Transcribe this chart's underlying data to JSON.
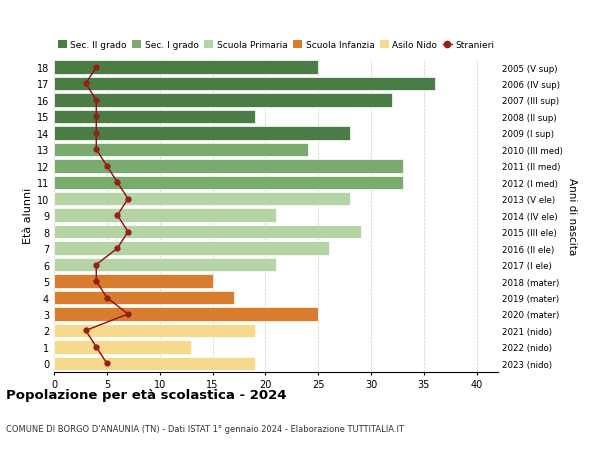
{
  "ages": [
    18,
    17,
    16,
    15,
    14,
    13,
    12,
    11,
    10,
    9,
    8,
    7,
    6,
    5,
    4,
    3,
    2,
    1,
    0
  ],
  "right_labels": [
    "2005 (V sup)",
    "2006 (IV sup)",
    "2007 (III sup)",
    "2008 (II sup)",
    "2009 (I sup)",
    "2010 (III med)",
    "2011 (II med)",
    "2012 (I med)",
    "2013 (V ele)",
    "2014 (IV ele)",
    "2015 (III ele)",
    "2016 (II ele)",
    "2017 (I ele)",
    "2018 (mater)",
    "2019 (mater)",
    "2020 (mater)",
    "2021 (nido)",
    "2022 (nido)",
    "2023 (nido)"
  ],
  "bar_values": [
    25,
    36,
    32,
    19,
    28,
    24,
    33,
    33,
    28,
    21,
    29,
    26,
    21,
    15,
    17,
    25,
    19,
    13,
    19
  ],
  "bar_colors": [
    "#4a7c45",
    "#4a7c45",
    "#4a7c45",
    "#4a7c45",
    "#4a7c45",
    "#7aaa6e",
    "#7aaa6e",
    "#7aaa6e",
    "#b5d4a5",
    "#b5d4a5",
    "#b5d4a5",
    "#b5d4a5",
    "#b5d4a5",
    "#d97c2e",
    "#d97c2e",
    "#d97c2e",
    "#f7d98b",
    "#f7d98b",
    "#f7d98b"
  ],
  "stranieri_values": [
    4,
    3,
    4,
    4,
    4,
    4,
    5,
    6,
    7,
    6,
    7,
    6,
    4,
    4,
    5,
    7,
    3,
    4,
    5
  ],
  "legend_labels": [
    "Sec. II grado",
    "Sec. I grado",
    "Scuola Primaria",
    "Scuola Infanzia",
    "Asilo Nido",
    "Stranieri"
  ],
  "legend_colors": [
    "#4a7c45",
    "#7aaa6e",
    "#b5d4a5",
    "#d97c2e",
    "#f7d98b",
    "#9b1c1c"
  ],
  "title": "Popolazione per età scolastica - 2024",
  "subtitle": "COMUNE DI BORGO D'ANAUNIA (TN) - Dati ISTAT 1° gennaio 2024 - Elaborazione TUTTITALIA.IT",
  "ylabel": "Età alunni",
  "right_ylabel": "Anni di nascita",
  "xlabel_ticks": [
    0,
    5,
    10,
    15,
    20,
    25,
    30,
    35,
    40
  ],
  "xlim": [
    0,
    42
  ],
  "background_color": "#ffffff",
  "grid_color": "#cccccc"
}
